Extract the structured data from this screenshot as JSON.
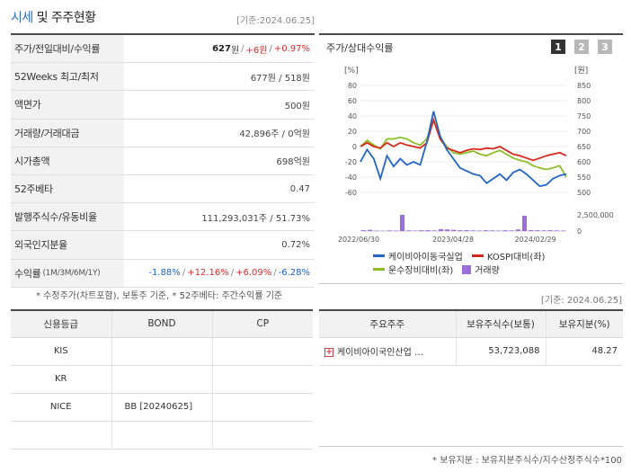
{
  "header": {
    "title_main": "시세",
    "title_rest": " 및 주주현황",
    "asof": "[기준:2024.06.25]"
  },
  "info_rows": [
    {
      "label": "주가/전일대비/수익률",
      "price": "627",
      "price_unit": "원",
      "change": "+6원",
      "rate": "+0.97%"
    },
    {
      "label": "52Weeks 최고/최저",
      "value": "677원 / 518원"
    },
    {
      "label": "액면가",
      "value": "500원"
    },
    {
      "label": "거래량/거래대금",
      "value": "42,896주 / 0억원"
    },
    {
      "label": "시가총액",
      "value": "698억원"
    },
    {
      "label": "52주베타",
      "value": "0.47"
    },
    {
      "label": "발행주식수/유동비율",
      "value": "111,293,031주 / 51.73%"
    },
    {
      "label": "외국인지분율",
      "value": "0.72%"
    },
    {
      "label": "수익률",
      "label_sub": "(1M/3M/6M/1Y)",
      "r1": "-1.88%",
      "r2": "+12.16%",
      "r3": "+6.09%",
      "r4": "-6.28%"
    }
  ],
  "note": "* 수정주가(차트포함), 보통주 기준, * 52주베타: 주간수익률 기준",
  "chart_panel": {
    "title": "주가/상대수익률",
    "buttons": [
      "1",
      "2",
      "3"
    ],
    "left_unit": "[%]",
    "right_unit": "[원]",
    "legend": [
      "케이비아이동국실업",
      "KOSPI대비(좌)",
      "운수장비대비(좌)",
      "거래량"
    ]
  },
  "chart_data": {
    "type": "line",
    "x_labels": [
      "2022/06/30",
      "2023/04/28",
      "2024/02/29"
    ],
    "left_ticks": [
      "80",
      "60",
      "40",
      "20",
      "0",
      "-20",
      "-40",
      "-60"
    ],
    "right_ticks": [
      "850",
      "800",
      "750",
      "700",
      "650",
      "600",
      "550",
      "500"
    ],
    "volume_ticks": [
      "2,500,000",
      "0"
    ],
    "left_ylim": [
      -60,
      80
    ],
    "right_ylim": [
      500,
      850
    ],
    "series": [
      {
        "name": "케이비아이동국실업",
        "axis": "right",
        "color": "#2166c4",
        "values": [
          600,
          640,
          610,
          545,
          620,
          585,
          610,
          590,
          600,
          590,
          665,
          765,
          685,
          640,
          610,
          580,
          570,
          560,
          555,
          530,
          545,
          560,
          540,
          565,
          575,
          560,
          540,
          520,
          525,
          545,
          555,
          560
        ]
      },
      {
        "name": "KOSPI대비(좌)",
        "axis": "left",
        "color": "#d8281e",
        "values": [
          0,
          5,
          0,
          -2,
          5,
          0,
          5,
          2,
          0,
          -2,
          5,
          35,
          10,
          -2,
          -5,
          -8,
          -5,
          -3,
          -4,
          -2,
          -3,
          0,
          -5,
          -10,
          -12,
          -15,
          -18,
          -15,
          -12,
          -10,
          -8,
          -12
        ]
      },
      {
        "name": "운수장비대비(좌)",
        "axis": "left",
        "color": "#8cbe28",
        "values": [
          0,
          8,
          2,
          -3,
          10,
          10,
          12,
          10,
          5,
          2,
          10,
          34,
          12,
          0,
          -8,
          -10,
          -8,
          -6,
          -10,
          -12,
          -8,
          -5,
          -10,
          -15,
          -18,
          -20,
          -25,
          -28,
          -30,
          -28,
          -25,
          -40
        ]
      }
    ],
    "volume": [
      0.05,
      0.08,
      0.03,
      0.02,
      0.04,
      0.03,
      1.0,
      0.04,
      0.03,
      0.05,
      0.06,
      0.04,
      0.12,
      0.1,
      0.08,
      0.05,
      0.06,
      0.04,
      0.03,
      0.05,
      0.04,
      0.03,
      0.05,
      0.04,
      0.1,
      0.95,
      0.06,
      0.05,
      0.04,
      0.05,
      0.04,
      0.03
    ],
    "volume_color": "#9b6fd8"
  },
  "asof_mid": "[기준: 2024.06.25]",
  "credit": {
    "headers": [
      "신용등급",
      "BOND",
      "CP"
    ],
    "rows": [
      [
        "KIS",
        "",
        ""
      ],
      [
        "KR",
        "",
        ""
      ],
      [
        "NICE",
        "BB   [20240625]",
        ""
      ],
      [
        "",
        "",
        ""
      ]
    ]
  },
  "holders": {
    "headers": [
      "주요주주",
      "보유주식수(보통)",
      "보유지분(%)"
    ],
    "rows": [
      {
        "name": "케이비아이국인산업 …",
        "shares": "53,723,088",
        "pct": "48.27"
      }
    ]
  },
  "note2": "* 보유지분 : 보유지분주식수/지수산정주식수*100"
}
